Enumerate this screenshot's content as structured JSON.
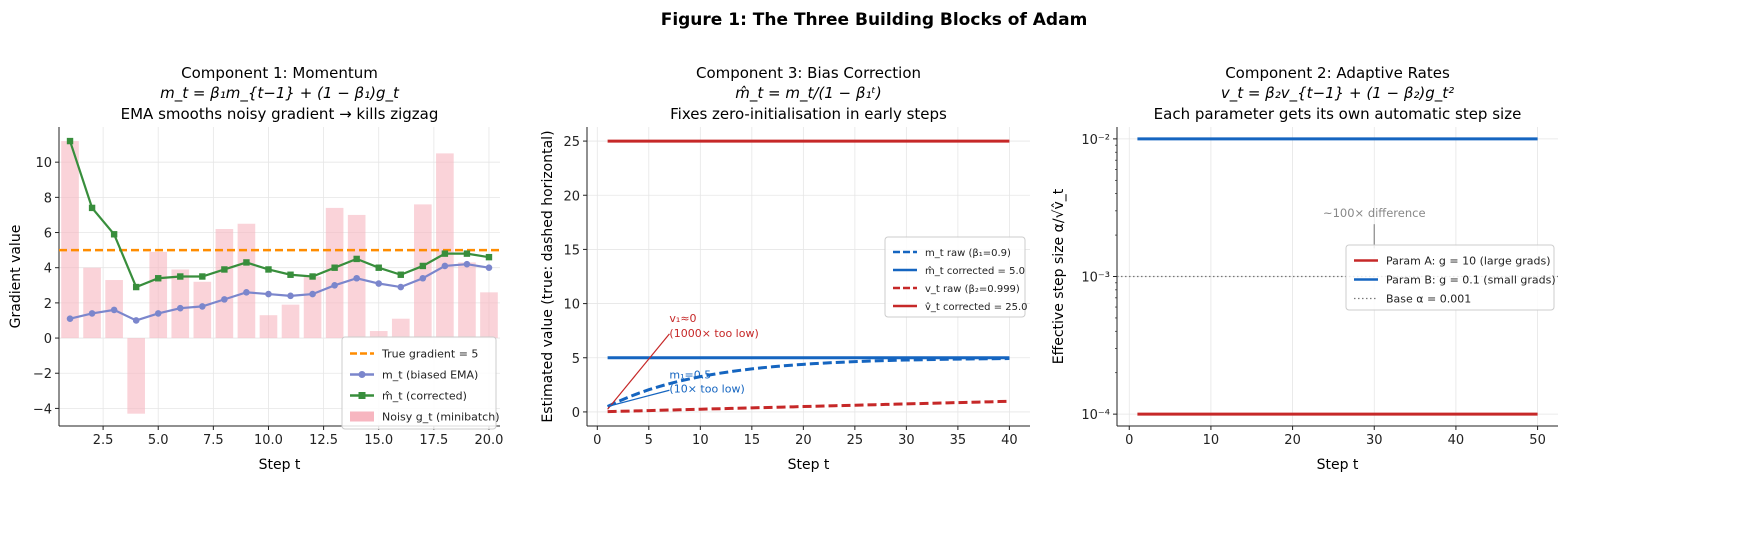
{
  "figure_title": "Figure 1: The Three Building Blocks of Adam",
  "chart_data": [
    {
      "type": "line",
      "title": [
        "Component 1: Momentum",
        "m_t = β₁m_{t−1} + (1 − β₁)g_t",
        "EMA smooths noisy gradient → kills zigzag"
      ],
      "xlabel": "Step t",
      "ylabel": "Gradient value",
      "xlim": [
        0.5,
        20.5
      ],
      "ylim": [
        -5,
        12
      ],
      "xticks": [
        2.5,
        5.0,
        7.5,
        10.0,
        12.5,
        15.0,
        17.5,
        20.0
      ],
      "xtick_labels": [
        "2.5",
        "5.0",
        "7.5",
        "10.0",
        "12.5",
        "15.0",
        "17.5",
        "20.0"
      ],
      "yticks": [
        -4,
        -2,
        0,
        2,
        4,
        6,
        8,
        10
      ],
      "ytick_labels": [
        "−4",
        "−2",
        "0",
        "2",
        "4",
        "6",
        "8",
        "10"
      ],
      "grid": true,
      "legend_position": "lower-right",
      "series": [
        {
          "name": "Noisy g_t (minibatch)",
          "kind": "bar",
          "color": "#f7b6c0",
          "x": [
            1,
            2,
            3,
            4,
            5,
            6,
            7,
            8,
            9,
            10,
            11,
            12,
            13,
            14,
            15,
            16,
            17,
            18,
            19,
            20
          ],
          "values": [
            11.2,
            4.0,
            3.3,
            -4.3,
            4.9,
            3.9,
            3.2,
            6.2,
            6.5,
            1.3,
            1.9,
            3.5,
            7.4,
            7.0,
            0.4,
            1.1,
            7.6,
            10.5,
            4.3,
            2.6
          ]
        },
        {
          "name": "True gradient = 5",
          "kind": "hline",
          "color": "#ff8c00",
          "dashed": true,
          "y": 5
        },
        {
          "name": "m_t (biased EMA)",
          "kind": "line",
          "color": "#7b86cc",
          "marker": "circle",
          "x": [
            1,
            2,
            3,
            4,
            5,
            6,
            7,
            8,
            9,
            10,
            11,
            12,
            13,
            14,
            15,
            16,
            17,
            18,
            19,
            20
          ],
          "values": [
            1.1,
            1.4,
            1.6,
            1.0,
            1.4,
            1.7,
            1.8,
            2.2,
            2.6,
            2.5,
            2.4,
            2.5,
            3.0,
            3.4,
            3.1,
            2.9,
            3.4,
            4.1,
            4.2,
            4.0
          ]
        },
        {
          "name": "m̂_t (corrected)",
          "kind": "line",
          "color": "#388e3c",
          "marker": "square",
          "x": [
            1,
            2,
            3,
            4,
            5,
            6,
            7,
            8,
            9,
            10,
            11,
            12,
            13,
            14,
            15,
            16,
            17,
            18,
            19,
            20
          ],
          "values": [
            11.2,
            7.4,
            5.9,
            2.9,
            3.4,
            3.5,
            3.5,
            3.9,
            4.3,
            3.9,
            3.6,
            3.5,
            4.0,
            4.5,
            4.0,
            3.6,
            4.1,
            4.8,
            4.8,
            4.6
          ]
        }
      ],
      "legend": [
        {
          "label": "True gradient = 5",
          "type": "dash",
          "color": "#ff8c00"
        },
        {
          "label": "m_t (biased EMA)",
          "type": "line-circle",
          "color": "#7b86cc"
        },
        {
          "label": "m̂_t (corrected)",
          "type": "line-square",
          "color": "#388e3c"
        },
        {
          "label": "Noisy g_t (minibatch)",
          "type": "patch",
          "color": "#f7b6c0"
        }
      ]
    },
    {
      "type": "line",
      "title": [
        "Component 3: Bias Correction",
        "m̂_t = m_t/(1 − β₁ᵗ)",
        "Fixes zero-initialisation in early steps"
      ],
      "xlabel": "Step t",
      "ylabel": "Estimated value  (true: dashed horizontal)",
      "xlim": [
        -1,
        42
      ],
      "ylim": [
        -1.3,
        26.3
      ],
      "xticks": [
        0,
        5,
        10,
        15,
        20,
        25,
        30,
        35,
        40
      ],
      "xtick_labels": [
        "0",
        "5",
        "10",
        "15",
        "20",
        "25",
        "30",
        "35",
        "40"
      ],
      "yticks": [
        0,
        5,
        10,
        15,
        20,
        25
      ],
      "ytick_labels": [
        "0",
        "5",
        "10",
        "15",
        "20",
        "25"
      ],
      "grid": true,
      "legend_position": "center-right",
      "series": [
        {
          "name": "m_t raw (β₁=0.9)",
          "color": "#1565c0",
          "dashed": true,
          "target": 5,
          "beta": 0.9
        },
        {
          "name": "m̂_t corrected = 5.0",
          "color": "#1565c0",
          "dashed": false,
          "y": 5
        },
        {
          "name": "v_t raw (β₂=0.999)",
          "color": "#c62828",
          "dashed": true,
          "target": 25,
          "beta": 0.999
        },
        {
          "name": "v̂_t corrected = 25.0",
          "color": "#c62828",
          "dashed": false,
          "y": 25
        }
      ],
      "legend": [
        {
          "label": "m_t raw  (β₁=0.9)",
          "type": "dash",
          "color": "#1565c0"
        },
        {
          "label": "m̂_t corrected = 5.0",
          "type": "line",
          "color": "#1565c0"
        },
        {
          "label": "v_t raw  (β₂=0.999)",
          "type": "dash",
          "color": "#c62828"
        },
        {
          "label": "v̂_t corrected = 25.0",
          "type": "line",
          "color": "#c62828"
        }
      ],
      "annotations": [
        {
          "lines": [
            "v₁≈0",
            "(1000× too low)"
          ],
          "color": "#c62828"
        },
        {
          "lines": [
            "m₁=0.5",
            "(10× too low)"
          ],
          "color": "#1565c0"
        }
      ]
    },
    {
      "type": "line",
      "yscale": "log",
      "title": [
        "Component 2: Adaptive Rates",
        "v_t = β₂v_{t−1} + (1 − β₂)g_t²",
        "Each parameter gets its own automatic step size"
      ],
      "xlabel": "Step t",
      "ylabel": "Effective step size  α/√v̂_t",
      "xlim": [
        -1.5,
        52.5
      ],
      "ylim": [
        8.2e-05,
        0.0122
      ],
      "xticks": [
        0,
        10,
        20,
        30,
        40,
        50
      ],
      "xtick_labels": [
        "0",
        "10",
        "20",
        "30",
        "40",
        "50"
      ],
      "yticks": [
        0.0001,
        0.001,
        0.01
      ],
      "ytick_labels": [
        "10⁻⁴",
        "10⁻³",
        "10⁻²"
      ],
      "grid": true,
      "legend_position": "center-right",
      "series": [
        {
          "name": "Param A: g = 10 (large grads)",
          "color": "#c62828",
          "x": [
            1,
            50
          ],
          "values": [
            0.0001,
            0.0001
          ]
        },
        {
          "name": "Param B: g = 0.1 (small grads)",
          "color": "#1565c0",
          "x": [
            1,
            50
          ],
          "values": [
            0.01,
            0.01
          ]
        },
        {
          "name": "Base α = 0.001",
          "color": "#777777",
          "dotted": true,
          "y": 0.001
        }
      ],
      "legend": [
        {
          "label": "Param A: g = 10 (large grads)",
          "type": "line",
          "color": "#c62828"
        },
        {
          "label": "Param B: g = 0.1 (small grads)",
          "type": "line",
          "color": "#1565c0"
        },
        {
          "label": "Base α = 0.001",
          "type": "dot",
          "color": "#777777"
        }
      ],
      "annotations": [
        {
          "lines": [
            "~100× difference"
          ],
          "color": "#888888"
        }
      ]
    }
  ]
}
